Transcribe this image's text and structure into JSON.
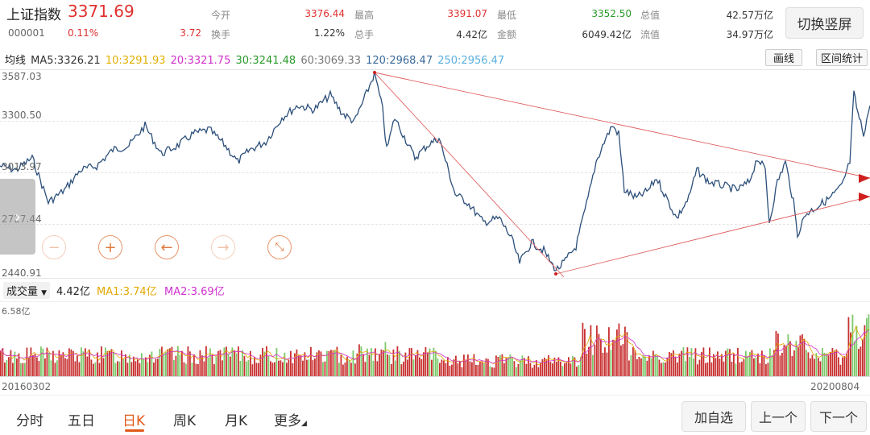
{
  "header": {
    "name": "上证指数",
    "price": "3371.69",
    "code": "000001",
    "change_pct": "0.11%",
    "change_val": "3.72",
    "stats": [
      {
        "label": "今开",
        "value": "3376.44"
      },
      {
        "label": "最高",
        "value": "3391.07"
      },
      {
        "label": "最低",
        "value": "3352.50"
      },
      {
        "label": "总值",
        "value": "42.57万亿"
      },
      {
        "label": "换手",
        "value": "1.22%"
      },
      {
        "label": "总手",
        "value": "4.42亿"
      },
      {
        "label": "金额",
        "value": "6049.42亿"
      },
      {
        "label": "流值",
        "value": "34.97万亿"
      }
    ],
    "switch_label": "切换竖屏"
  },
  "ma_row": {
    "title": "均线",
    "items": [
      {
        "text": "MA5:3326.21",
        "color": "#333333"
      },
      {
        "text": "10:3291.93",
        "color": "#e0b000"
      },
      {
        "text": "20:3321.75",
        "color": "#d030c8"
      },
      {
        "text": "30:3241.48",
        "color": "#2a9a2a"
      },
      {
        "text": "60:3069.33",
        "color": "#777777"
      },
      {
        "text": "120:2968.47",
        "color": "#3a6a9a"
      },
      {
        "text": "250:2956.47",
        "color": "#5ab0e0"
      }
    ],
    "draw_label": "画线",
    "range_label": "区间统计"
  },
  "price_axis": {
    "labels": [
      "3587.03",
      "3300.50",
      "3013.97",
      "2727.44",
      "2440.91"
    ]
  },
  "controls": [
    "zoom-out",
    "zoom-in",
    "scroll-left",
    "scroll-right",
    "collapse"
  ],
  "volume": {
    "selector": "成交量",
    "value": "4.42亿",
    "ma1": "MA1:3.74亿",
    "ma2": "MA2:3.69亿",
    "max_label": "6.58亿"
  },
  "dates": {
    "start": "20160302",
    "end": "20200804"
  },
  "tabs": [
    "分时",
    "五日",
    "日K",
    "周K",
    "月K",
    "更多"
  ],
  "active_tab": "日K",
  "nav_buttons": [
    "加自选",
    "上一个",
    "下一个"
  ],
  "colors": {
    "up": "#e03030",
    "down": "#7cc86a",
    "line": "#2c4f7a",
    "trend": "#e06060",
    "accent": "#e05a1a"
  },
  "chart_data": {
    "type": "line",
    "ylim": [
      2440.91,
      3587.03
    ],
    "x_range": [
      "20160302",
      "20200804"
    ],
    "trendlines": [
      {
        "from": [
          3587,
          "peak"
        ],
        "to": "upper-right"
      },
      {
        "from": [
          3587,
          "peak"
        ],
        "to": [
          2440,
          "trough"
        ]
      },
      {
        "from": [
          2440,
          "trough"
        ],
        "to": "lower-right"
      }
    ]
  }
}
